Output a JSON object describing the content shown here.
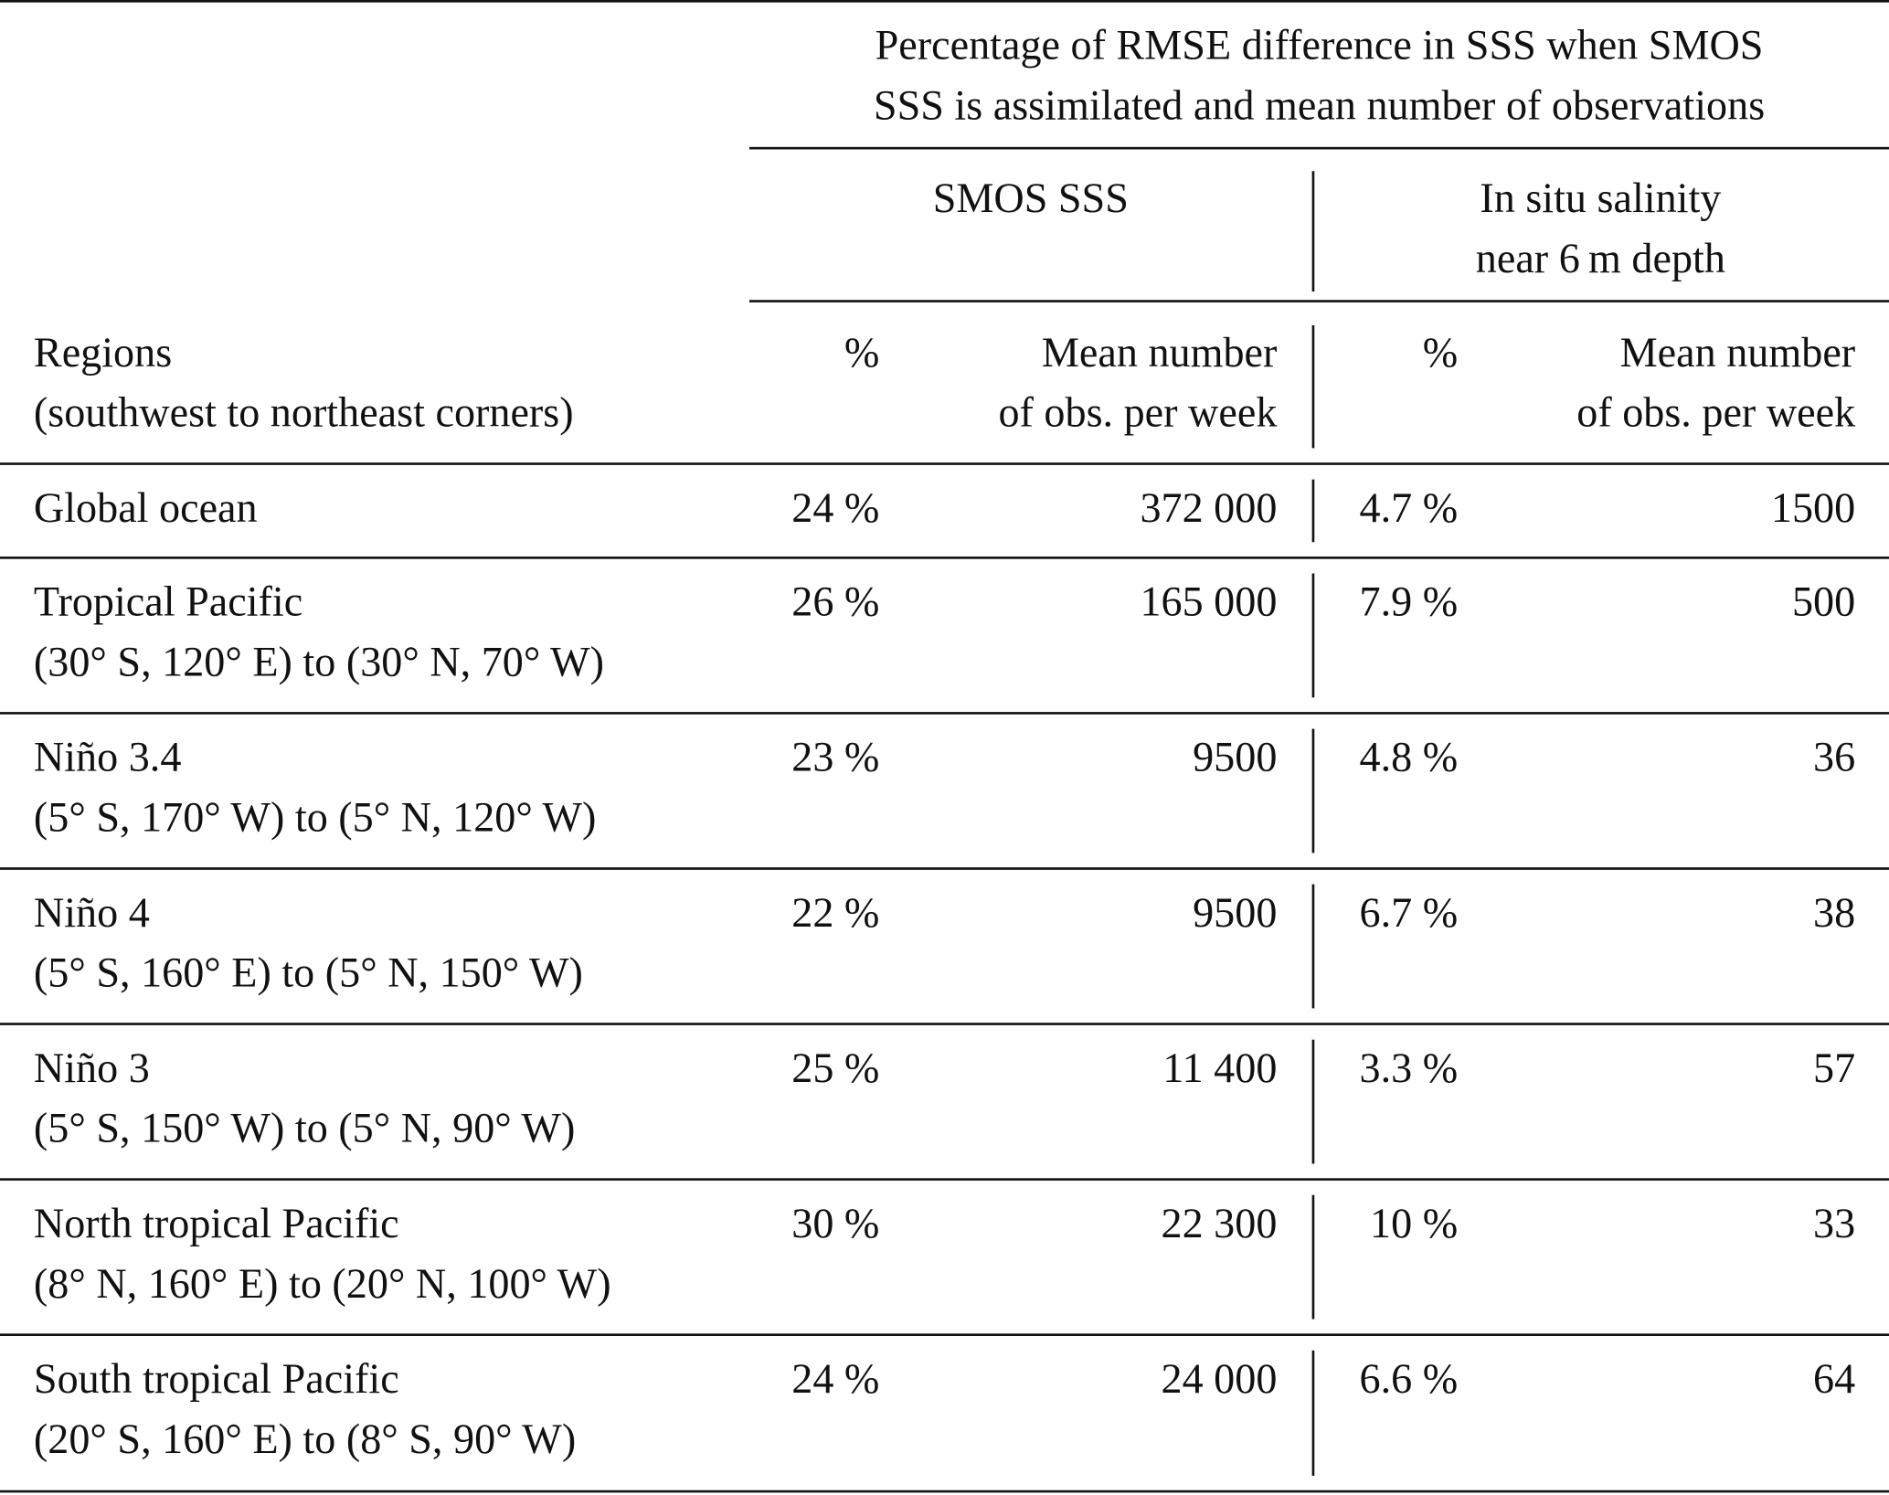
{
  "table": {
    "spanner": [
      "Percentage of RMSE difference in SSS when SMOS",
      "SSS is assimilated and mean number of observations"
    ],
    "group_smos": "SMOS SSS",
    "group_insitu": [
      "In situ salinity",
      "near 6 m depth"
    ],
    "col_region": [
      "Regions",
      "(southwest to northeast corners)"
    ],
    "col_pct": "%",
    "col_mean": [
      "Mean number",
      "of obs. per week"
    ],
    "rows": [
      {
        "region": "Global ocean",
        "coords": "",
        "smos_pct": "24 %",
        "smos_n": "372 000",
        "insitu_pct": "4.7 %",
        "insitu_n": "1500"
      },
      {
        "region": "Tropical Pacific",
        "coords": "(30° S, 120° E) to (30° N, 70° W)",
        "smos_pct": "26 %",
        "smos_n": "165 000",
        "insitu_pct": "7.9 %",
        "insitu_n": "500"
      },
      {
        "region": "Niño 3.4",
        "coords": "(5° S, 170° W) to (5° N, 120° W)",
        "smos_pct": "23 %",
        "smos_n": "9500",
        "insitu_pct": "4.8 %",
        "insitu_n": "36"
      },
      {
        "region": "Niño 4",
        "coords": "(5° S, 160° E) to (5° N, 150° W)",
        "smos_pct": "22 %",
        "smos_n": "9500",
        "insitu_pct": "6.7 %",
        "insitu_n": "38"
      },
      {
        "region": "Niño 3",
        "coords": "(5° S, 150° W) to (5° N, 90° W)",
        "smos_pct": "25 %",
        "smos_n": "11 400",
        "insitu_pct": "3.3 %",
        "insitu_n": "57"
      },
      {
        "region": "North tropical Pacific",
        "coords": "(8° N, 160° E) to (20° N, 100° W)",
        "smos_pct": "30 %",
        "smos_n": "22 300",
        "insitu_pct": "10 %",
        "insitu_n": "33"
      },
      {
        "region": "South tropical Pacific",
        "coords": "(20° S, 160° E) to (8° S, 90° W)",
        "smos_pct": "24 %",
        "smos_n": "24 000",
        "insitu_pct": "6.6 %",
        "insitu_n": "64"
      }
    ]
  }
}
